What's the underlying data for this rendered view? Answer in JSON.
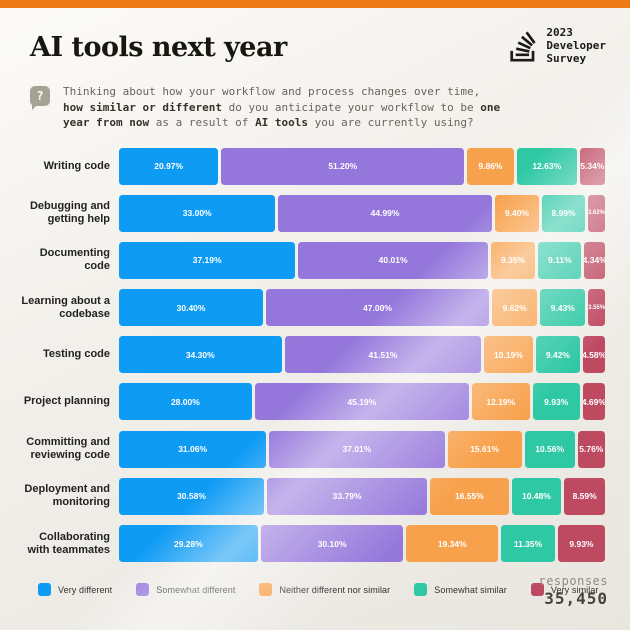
{
  "header": {
    "title": "AI tools next year",
    "logo_text": "2023\nDeveloper\nSurvey"
  },
  "question": {
    "icon_glyph": "?",
    "segments": [
      {
        "text": "Thinking about how your workflow and process changes over time,",
        "bold": false,
        "break_after": true
      },
      {
        "text": "how similar or different",
        "bold": true,
        "break_after": false
      },
      {
        "text": " do you anticipate your workflow to be ",
        "bold": false,
        "break_after": false
      },
      {
        "text": "one",
        "bold": true,
        "break_after": true
      },
      {
        "text": "year from now",
        "bold": true,
        "break_after": false
      },
      {
        "text": " as a result of ",
        "bold": false,
        "break_after": false
      },
      {
        "text": "AI tools",
        "bold": true,
        "break_after": false
      },
      {
        "text": " you are currently using?",
        "bold": false,
        "break_after": false
      }
    ]
  },
  "chart_data": {
    "type": "bar",
    "stacked": true,
    "orientation": "horizontal",
    "unit": "%",
    "value_format": "2dp_percent",
    "legend_position": "bottom",
    "xlim": [
      0,
      100
    ],
    "categories": [
      "Writing code",
      "Debugging and getting help",
      "Documenting code",
      "Learning about a codebase",
      "Testing code",
      "Project planning",
      "Committing and reviewing code",
      "Deployment and monitoring",
      "Collaborating with teammates"
    ],
    "series": [
      {
        "name": "Very different",
        "color": "#0e9bf4",
        "values": [
          20.97,
          33.0,
          37.19,
          30.4,
          34.3,
          28.0,
          31.06,
          30.58,
          29.28
        ]
      },
      {
        "name": "Somewhat different",
        "color": "#9577dc",
        "values": [
          51.2,
          44.99,
          40.01,
          47.0,
          41.51,
          45.19,
          37.01,
          33.79,
          30.1
        ]
      },
      {
        "name": "Neither different nor similar",
        "color": "#f8a14c",
        "values": [
          9.86,
          9.4,
          9.35,
          9.62,
          10.19,
          12.19,
          15.61,
          16.55,
          19.34
        ]
      },
      {
        "name": "Somewhat similar",
        "color": "#2ec8a5",
        "values": [
          12.63,
          8.99,
          9.11,
          9.43,
          9.42,
          9.93,
          10.56,
          10.48,
          11.35
        ]
      },
      {
        "name": "Very similar",
        "color": "#be4a62",
        "values": [
          5.34,
          3.62,
          4.34,
          3.55,
          4.58,
          4.69,
          5.76,
          8.59,
          9.93
        ]
      }
    ]
  },
  "footer": {
    "responses_label": "responses",
    "responses_value": "35,450"
  },
  "colors": {
    "topbar": "#ee7a16",
    "background": "#f0eee9",
    "title": "#17160f"
  }
}
